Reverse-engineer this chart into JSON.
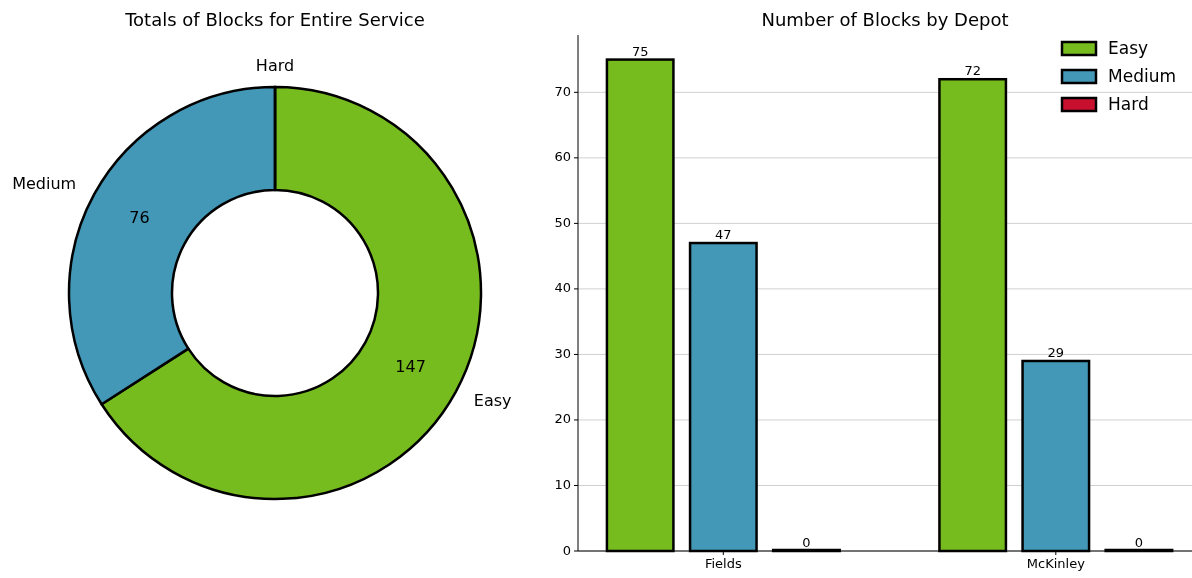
{
  "chart_data": [
    {
      "type": "donut",
      "title": "Totals of Blocks for Entire Service",
      "categories": [
        "Easy",
        "Medium",
        "Hard"
      ],
      "values": [
        147,
        76,
        0
      ],
      "colors": [
        "#77bc1f",
        "#4397b7",
        "#c8102e"
      ],
      "value_labels": [
        "147",
        "76",
        null
      ]
    },
    {
      "type": "bar",
      "title": "Number of Blocks by Depot",
      "categories": [
        "Fields",
        "McKinley"
      ],
      "series": [
        {
          "name": "Easy",
          "color": "#77bc1f",
          "values": [
            75,
            72
          ]
        },
        {
          "name": "Medium",
          "color": "#4397b7",
          "values": [
            47,
            29
          ]
        },
        {
          "name": "Hard",
          "color": "#c8102e",
          "values": [
            0,
            0
          ]
        }
      ],
      "ylim": [
        0,
        78.75
      ],
      "yticks": [
        0,
        10,
        20,
        30,
        40,
        50,
        60,
        70
      ],
      "grid": "y",
      "legend": "top right",
      "data_labels": true
    }
  ]
}
